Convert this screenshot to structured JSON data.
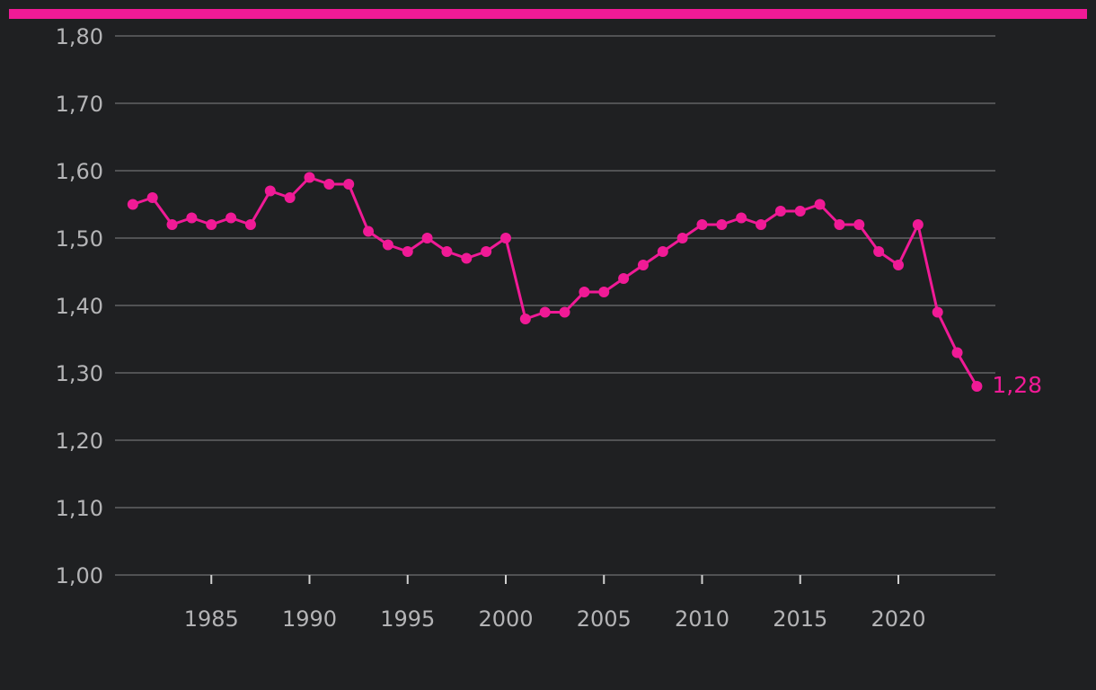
{
  "colors": {
    "background": "#1f2022",
    "accent": "#f01a96",
    "grid": "#6f6f72",
    "text": "#b4b4b6"
  },
  "chart_data": {
    "type": "line",
    "title": "",
    "xlabel": "",
    "ylabel": "",
    "grid": true,
    "legend": "none",
    "xlim": [
      1980.5,
      2025
    ],
    "ylim": [
      1.0,
      1.8
    ],
    "x_ticks": [
      1985,
      1990,
      1995,
      2000,
      2005,
      2010,
      2015,
      2020
    ],
    "x_tick_labels": [
      "1985",
      "1990",
      "1995",
      "2000",
      "2005",
      "2010",
      "2015",
      "2020"
    ],
    "y_ticks": [
      1.0,
      1.1,
      1.2,
      1.3,
      1.4,
      1.5,
      1.6,
      1.7,
      1.8
    ],
    "y_tick_labels": [
      "1,00",
      "1,10",
      "1,20",
      "1,30",
      "1,40",
      "1,50",
      "1,60",
      "1,70",
      "1,80"
    ],
    "series": [
      {
        "x": [
          1981,
          1982,
          1983,
          1984,
          1985,
          1986,
          1987,
          1988,
          1989,
          1990,
          1991,
          1992,
          1993,
          1994,
          1995,
          1996,
          1997,
          1998,
          1999,
          2000,
          2001,
          2002,
          2003,
          2004,
          2005,
          2006,
          2007,
          2008,
          2009,
          2010,
          2011,
          2012,
          2013,
          2014,
          2015,
          2016,
          2017,
          2018,
          2019,
          2020,
          2021,
          2022,
          2023,
          2024
        ],
        "values": [
          1.55,
          1.56,
          1.52,
          1.53,
          1.52,
          1.53,
          1.52,
          1.57,
          1.56,
          1.59,
          1.58,
          1.58,
          1.51,
          1.49,
          1.48,
          1.5,
          1.48,
          1.47,
          1.48,
          1.5,
          1.38,
          1.39,
          1.39,
          1.42,
          1.42,
          1.44,
          1.46,
          1.48,
          1.5,
          1.52,
          1.52,
          1.53,
          1.52,
          1.54,
          1.54,
          1.55,
          1.52,
          1.52,
          1.48,
          1.46,
          1.52,
          1.39,
          1.33,
          1.28
        ],
        "color": "#f01a96"
      }
    ],
    "annotations": [
      {
        "x": 2024,
        "y": 1.28,
        "text": "1,28"
      }
    ]
  }
}
